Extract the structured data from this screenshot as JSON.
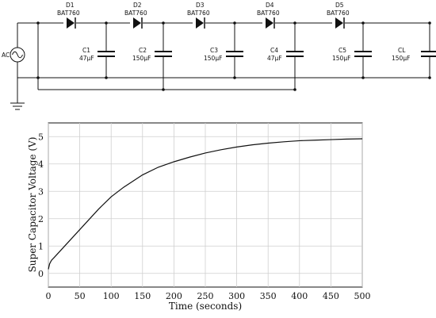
{
  "circuit": {
    "source_label": "AC",
    "diodes": [
      {
        "name": "D1",
        "part": "BAT760"
      },
      {
        "name": "D2",
        "part": "BAT760"
      },
      {
        "name": "D3",
        "part": "BAT760"
      },
      {
        "name": "D4",
        "part": "BAT760"
      },
      {
        "name": "D5",
        "part": "BAT760"
      }
    ],
    "capacitors": [
      {
        "name": "C1",
        "value": "47µF"
      },
      {
        "name": "C2",
        "value": "150µF"
      },
      {
        "name": "C3",
        "value": "150µF"
      },
      {
        "name": "C4",
        "value": "47µF"
      },
      {
        "name": "C5",
        "value": "150µF"
      },
      {
        "name": "CL",
        "value": "150µF"
      }
    ]
  },
  "chart_data": {
    "type": "line",
    "title": "",
    "xlabel": "Time (seconds)",
    "ylabel": "Super Capacitor Voltage (V)",
    "xlim": [
      0,
      500
    ],
    "ylim": [
      -0.5,
      5.5
    ],
    "xticks": [
      0,
      50,
      100,
      150,
      200,
      250,
      300,
      350,
      400,
      450,
      500
    ],
    "yticks": [
      0,
      1,
      2,
      3,
      4,
      5
    ],
    "grid": true,
    "series": [
      {
        "color": "#111111",
        "x": [
          0,
          2,
          5,
          10,
          20,
          30,
          40,
          50,
          60,
          80,
          100,
          120,
          150,
          175,
          200,
          225,
          250,
          275,
          300,
          325,
          350,
          375,
          400,
          425,
          450,
          475,
          500
        ],
        "y": [
          0.15,
          0.35,
          0.48,
          0.6,
          0.85,
          1.1,
          1.35,
          1.6,
          1.85,
          2.35,
          2.8,
          3.15,
          3.6,
          3.88,
          4.08,
          4.25,
          4.4,
          4.52,
          4.62,
          4.7,
          4.76,
          4.81,
          4.85,
          4.87,
          4.89,
          4.91,
          4.92
        ]
      }
    ]
  }
}
